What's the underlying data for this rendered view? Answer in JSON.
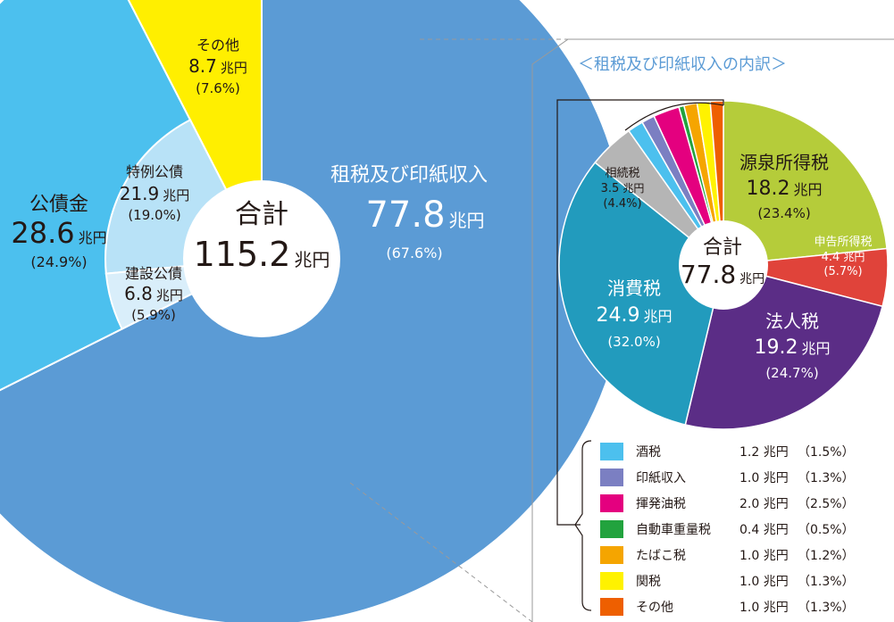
{
  "chart_data": [
    {
      "type": "pie",
      "center_label": "合計",
      "total": {
        "value": "115.2",
        "unit": "兆円"
      },
      "slices": [
        {
          "name": "租税及び印紙収入",
          "value": 77.8,
          "unit": "兆円",
          "percent": "(67.6%)",
          "color": "#5b9bd5"
        },
        {
          "name": "公債金",
          "value": 28.6,
          "unit": "兆円",
          "percent": "(24.9%)",
          "color": "#4cc0ee"
        },
        {
          "name": "その他",
          "value": 8.7,
          "unit": "兆円",
          "percent": "(7.6%)",
          "color": "#ffef00"
        }
      ],
      "inner_slices": [
        {
          "name": "特例公債",
          "value": 21.9,
          "unit": "兆円",
          "percent": "(19.0%)",
          "color": "#b8e2f7"
        },
        {
          "name": "建設公債",
          "value": 6.8,
          "unit": "兆円",
          "percent": "(5.9%)",
          "color": "#d9eefa"
        }
      ]
    },
    {
      "type": "pie",
      "title": "＜租税及び印紙収入の内訳＞",
      "center_label": "合計",
      "total": {
        "value": "77.8",
        "unit": "兆円"
      },
      "slices": [
        {
          "name": "源泉所得税",
          "value": 18.2,
          "unit": "兆円",
          "percent": "(23.4%)",
          "color": "#b5cc3a"
        },
        {
          "name": "申告所得税",
          "value": 4.4,
          "unit": "兆円",
          "percent": "(5.7%)",
          "color": "#e0433a"
        },
        {
          "name": "法人税",
          "value": 19.2,
          "unit": "兆円",
          "percent": "(24.7%)",
          "color": "#5b2d86"
        },
        {
          "name": "消費税",
          "value": 24.9,
          "unit": "兆円",
          "percent": "(32.0%)",
          "color": "#229bbd"
        },
        {
          "name": "相続税",
          "value": 3.5,
          "unit": "兆円",
          "percent": "(4.4%)",
          "color": "#b5b5b5"
        },
        {
          "name": "酒税",
          "value": 1.2,
          "unit": "兆円",
          "percent": "（1.5%）",
          "color": "#4cc0ee"
        },
        {
          "name": "印紙収入",
          "value": 1.0,
          "unit": "兆円",
          "percent": "（1.3%）",
          "color": "#7b7fc2"
        },
        {
          "name": "揮発油税",
          "value": 2.0,
          "unit": "兆円",
          "percent": "（2.5%）",
          "color": "#e4007f"
        },
        {
          "name": "自動車重量税",
          "value": 0.4,
          "unit": "兆円",
          "percent": "（0.5%）",
          "color": "#22a33e"
        },
        {
          "name": "たばこ税",
          "value": 1.0,
          "unit": "兆円",
          "percent": "（1.2%）",
          "color": "#f5a500"
        },
        {
          "name": "関税",
          "value": 1.0,
          "unit": "兆円",
          "percent": "（1.3%）",
          "color": "#fff200"
        },
        {
          "name": "その他",
          "value": 1.0,
          "unit": "兆円",
          "percent": "（1.3%）",
          "color": "#ee5f00"
        }
      ],
      "legend_items": [
        5,
        6,
        7,
        8,
        9,
        10,
        11
      ]
    }
  ]
}
